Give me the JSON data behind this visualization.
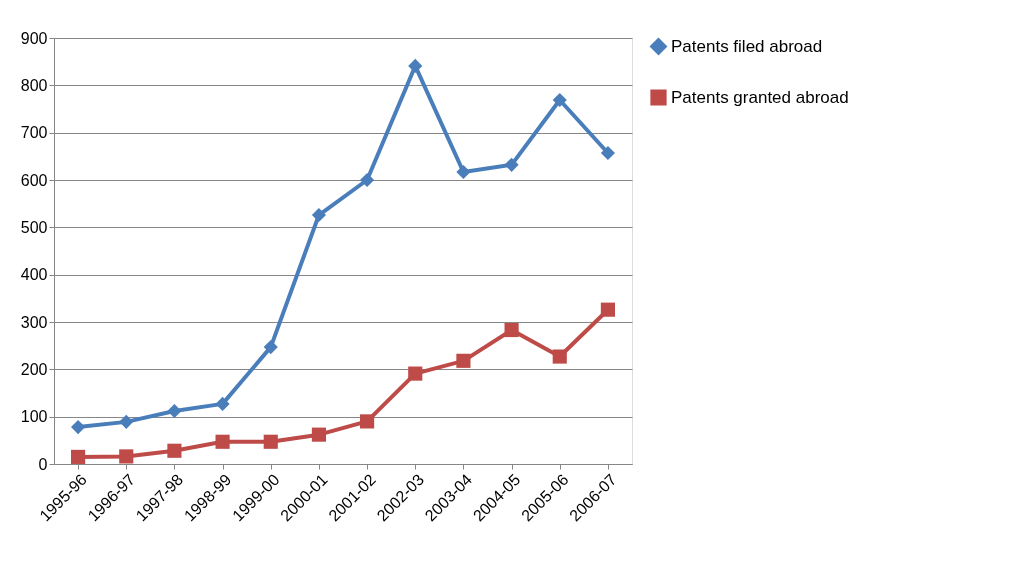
{
  "chart_data": {
    "type": "line",
    "categories": [
      "1995-96",
      "1996-97",
      "1997-98",
      "1998-99",
      "1999-00",
      "2000-01",
      "2001-02",
      "2002-03",
      "2003-04",
      "2004-05",
      "2005-06",
      "2006-07"
    ],
    "series": [
      {
        "name": "Patents filed abroad",
        "color": "#4a7ebb",
        "marker": "diamond",
        "values": [
          78,
          89,
          112,
          127,
          247,
          526,
          600,
          841,
          617,
          632,
          769,
          657
        ]
      },
      {
        "name": "Patents granted abroad",
        "color": "#be4b48",
        "marker": "square",
        "values": [
          15,
          16,
          28,
          47,
          47,
          62,
          90,
          191,
          218,
          283,
          227,
          326
        ]
      }
    ],
    "ylim": [
      0,
      900
    ],
    "yticks": [
      0,
      100,
      200,
      300,
      400,
      500,
      600,
      700,
      800,
      900
    ],
    "grid": "y",
    "legend": "right",
    "line_style": "solid"
  }
}
